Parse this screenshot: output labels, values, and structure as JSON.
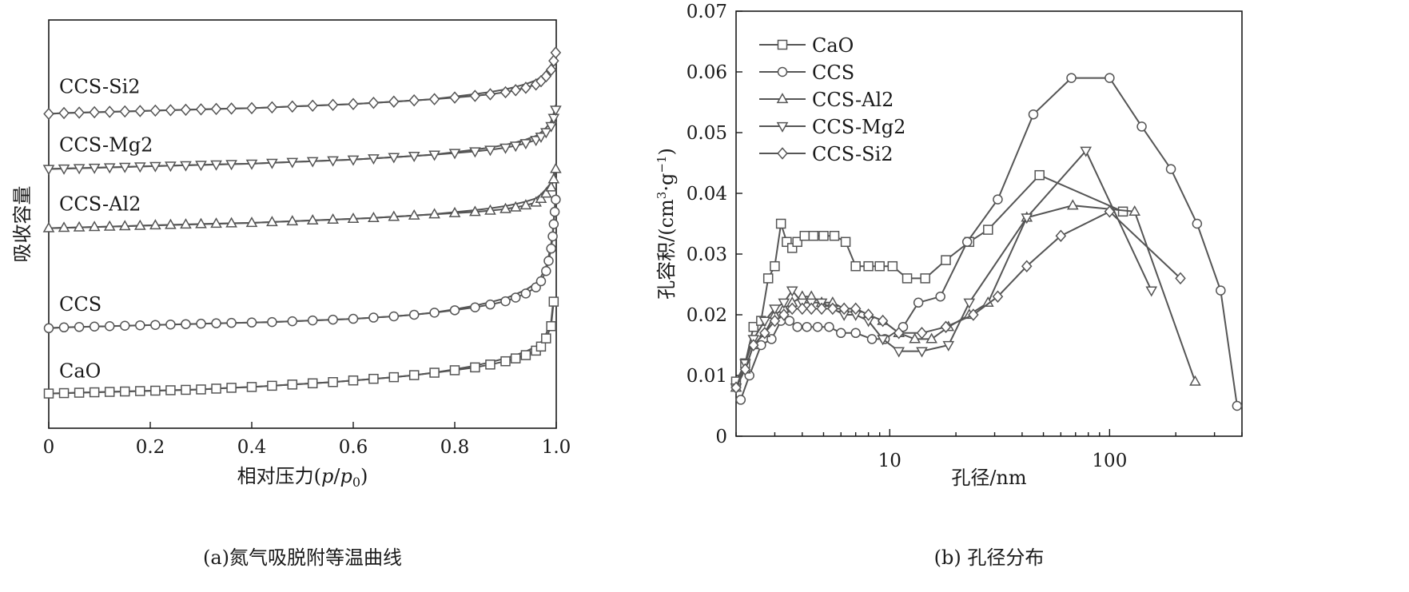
{
  "colors": {
    "line": "#555555",
    "marker_fill": "#ffffff",
    "axis": "#1a1a1a"
  },
  "chart_data": [
    {
      "id": "a",
      "type": "line",
      "caption": "(a)氮气吸脱附等温曲线",
      "xlabel": "相对压力(p/p0)",
      "xlabel_parts": [
        "相对压力(",
        "p",
        "/",
        "p",
        "0",
        ")"
      ],
      "ylabel": "吸收容量",
      "xlim": [
        0,
        1
      ],
      "xticks": [
        0,
        0.2,
        0.4,
        0.6,
        0.8,
        1.0
      ],
      "xtick_labels": [
        "0",
        "0.2",
        "0.4",
        "0.6",
        "0.8",
        "1.0"
      ],
      "y_ticks_labeled": false,
      "ylim": [
        0,
        1
      ],
      "series": [
        {
          "name": "CaO",
          "label": "CaO",
          "marker": "square",
          "x": [
            0,
            0.03,
            0.06,
            0.09,
            0.12,
            0.15,
            0.18,
            0.21,
            0.24,
            0.27,
            0.3,
            0.33,
            0.36,
            0.4,
            0.44,
            0.48,
            0.52,
            0.56,
            0.6,
            0.64,
            0.68,
            0.72,
            0.76,
            0.8,
            0.84,
            0.87,
            0.9,
            0.92,
            0.94,
            0.96,
            0.97,
            0.98,
            0.99,
            0.995
          ],
          "y": [
            0.085,
            0.086,
            0.087,
            0.088,
            0.089,
            0.09,
            0.091,
            0.092,
            0.093,
            0.094,
            0.095,
            0.097,
            0.099,
            0.101,
            0.104,
            0.107,
            0.11,
            0.113,
            0.117,
            0.121,
            0.125,
            0.13,
            0.136,
            0.142,
            0.149,
            0.156,
            0.164,
            0.171,
            0.179,
            0.19,
            0.2,
            0.22,
            0.25,
            0.31
          ]
        },
        {
          "name": "CCS",
          "label": "CCS",
          "marker": "circle",
          "x": [
            0,
            0.03,
            0.06,
            0.09,
            0.12,
            0.15,
            0.18,
            0.21,
            0.24,
            0.27,
            0.3,
            0.33,
            0.36,
            0.4,
            0.44,
            0.48,
            0.52,
            0.56,
            0.6,
            0.64,
            0.68,
            0.72,
            0.76,
            0.8,
            0.84,
            0.87,
            0.9,
            0.92,
            0.94,
            0.96,
            0.97,
            0.98,
            0.985,
            0.99,
            0.993,
            0.995,
            0.997,
            0.999
          ],
          "y": [
            0.245,
            0.247,
            0.248,
            0.249,
            0.25,
            0.251,
            0.252,
            0.253,
            0.254,
            0.255,
            0.256,
            0.257,
            0.258,
            0.259,
            0.26,
            0.262,
            0.264,
            0.266,
            0.268,
            0.271,
            0.274,
            0.278,
            0.283,
            0.289,
            0.296,
            0.303,
            0.311,
            0.32,
            0.33,
            0.345,
            0.36,
            0.385,
            0.41,
            0.44,
            0.47,
            0.5,
            0.53,
            0.56
          ]
        },
        {
          "name": "CCS-Al2",
          "label": "CCS-Al2",
          "marker": "triangle-up",
          "x": [
            0,
            0.03,
            0.06,
            0.09,
            0.12,
            0.15,
            0.18,
            0.21,
            0.24,
            0.27,
            0.3,
            0.33,
            0.36,
            0.4,
            0.44,
            0.48,
            0.52,
            0.56,
            0.6,
            0.64,
            0.68,
            0.72,
            0.76,
            0.8,
            0.84,
            0.87,
            0.9,
            0.92,
            0.94,
            0.96,
            0.97,
            0.98,
            0.99,
            0.995,
            0.999
          ],
          "y": [
            0.49,
            0.491,
            0.492,
            0.493,
            0.494,
            0.495,
            0.496,
            0.497,
            0.498,
            0.499,
            0.5,
            0.501,
            0.502,
            0.503,
            0.505,
            0.507,
            0.509,
            0.511,
            0.513,
            0.515,
            0.518,
            0.521,
            0.524,
            0.527,
            0.53,
            0.533,
            0.537,
            0.541,
            0.546,
            0.553,
            0.562,
            0.575,
            0.59,
            0.61,
            0.635
          ]
        },
        {
          "name": "CCS-Mg2",
          "label": "CCS-Mg2",
          "marker": "triangle-down",
          "x": [
            0,
            0.03,
            0.06,
            0.09,
            0.12,
            0.15,
            0.18,
            0.21,
            0.24,
            0.27,
            0.3,
            0.33,
            0.36,
            0.4,
            0.44,
            0.48,
            0.52,
            0.56,
            0.6,
            0.64,
            0.68,
            0.72,
            0.76,
            0.8,
            0.84,
            0.87,
            0.9,
            0.92,
            0.94,
            0.96,
            0.97,
            0.98,
            0.99,
            0.995,
            0.999
          ],
          "y": [
            0.635,
            0.636,
            0.637,
            0.638,
            0.639,
            0.64,
            0.641,
            0.642,
            0.643,
            0.644,
            0.645,
            0.646,
            0.647,
            0.648,
            0.65,
            0.652,
            0.654,
            0.656,
            0.658,
            0.661,
            0.664,
            0.667,
            0.67,
            0.674,
            0.678,
            0.682,
            0.687,
            0.692,
            0.698,
            0.706,
            0.714,
            0.725,
            0.74,
            0.76,
            0.78
          ]
        },
        {
          "name": "CCS-Si2",
          "label": "CCS-Si2",
          "marker": "diamond",
          "x": [
            0,
            0.03,
            0.06,
            0.09,
            0.12,
            0.15,
            0.18,
            0.21,
            0.24,
            0.27,
            0.3,
            0.33,
            0.36,
            0.4,
            0.44,
            0.48,
            0.52,
            0.56,
            0.6,
            0.64,
            0.68,
            0.72,
            0.76,
            0.8,
            0.84,
            0.87,
            0.9,
            0.92,
            0.94,
            0.96,
            0.97,
            0.98,
            0.99,
            0.995,
            0.999
          ],
          "y": [
            0.77,
            0.772,
            0.773,
            0.774,
            0.775,
            0.776,
            0.777,
            0.778,
            0.779,
            0.78,
            0.781,
            0.782,
            0.783,
            0.784,
            0.786,
            0.788,
            0.79,
            0.792,
            0.794,
            0.797,
            0.8,
            0.803,
            0.806,
            0.81,
            0.814,
            0.818,
            0.823,
            0.828,
            0.834,
            0.842,
            0.85,
            0.862,
            0.878,
            0.9,
            0.92
          ]
        }
      ]
    },
    {
      "id": "b",
      "type": "line",
      "caption": "(b) 孔径分布",
      "xlabel": "孔径/nm",
      "ylabel": "孔容积/(cm³·g⁻¹)",
      "ylabel_parts": [
        "孔容积/(cm",
        "3",
        "·g",
        "−1",
        ")"
      ],
      "xscale": "log",
      "xlim": [
        2,
        400
      ],
      "xticks": [
        10,
        100
      ],
      "xtick_labels": [
        "10",
        "100"
      ],
      "ylim": [
        0,
        0.07
      ],
      "yticks": [
        0,
        0.01,
        0.02,
        0.03,
        0.04,
        0.05,
        0.06,
        0.07
      ],
      "ytick_labels": [
        "0",
        "0.01",
        "0.02",
        "0.03",
        "0.04",
        "0.05",
        "0.06",
        "0.07"
      ],
      "legend": {
        "placement": "top-left",
        "entries": [
          "CaO",
          "CCS",
          "CCS-Al2",
          "CCS-Mg2",
          "CCS-Si2"
        ]
      },
      "series": [
        {
          "name": "CaO",
          "marker": "square",
          "x": [
            2.0,
            2.2,
            2.4,
            2.6,
            2.8,
            3.0,
            3.2,
            3.4,
            3.6,
            3.8,
            4.1,
            4.5,
            5.0,
            5.6,
            6.3,
            7.0,
            8.0,
            9.0,
            10.3,
            12.0,
            14.5,
            18.0,
            23.0,
            28.0,
            48.0,
            115.0
          ],
          "y": [
            0.009,
            0.012,
            0.018,
            0.019,
            0.026,
            0.028,
            0.035,
            0.032,
            0.031,
            0.032,
            0.033,
            0.033,
            0.033,
            0.033,
            0.032,
            0.028,
            0.028,
            0.028,
            0.028,
            0.026,
            0.026,
            0.029,
            0.032,
            0.034,
            0.043,
            0.037
          ]
        },
        {
          "name": "CCS",
          "marker": "circle",
          "x": [
            2.1,
            2.3,
            2.6,
            2.9,
            3.2,
            3.5,
            3.8,
            4.2,
            4.7,
            5.3,
            6.0,
            7.0,
            8.3,
            9.5,
            11.5,
            13.5,
            17.0,
            22.5,
            31.0,
            45.0,
            67.0,
            100.0,
            140.0,
            190.0,
            250.0,
            320.0,
            380.0
          ],
          "y": [
            0.006,
            0.01,
            0.015,
            0.016,
            0.019,
            0.019,
            0.018,
            0.018,
            0.018,
            0.018,
            0.017,
            0.017,
            0.016,
            0.016,
            0.018,
            0.022,
            0.023,
            0.032,
            0.039,
            0.053,
            0.059,
            0.059,
            0.051,
            0.044,
            0.035,
            0.024,
            0.005
          ]
        },
        {
          "name": "CCS-Al2",
          "marker": "triangle-up",
          "x": [
            2.0,
            2.2,
            2.4,
            2.7,
            3.0,
            3.3,
            3.6,
            4.0,
            4.4,
            4.9,
            5.5,
            6.2,
            7.0,
            8.0,
            9.3,
            11.0,
            13.0,
            15.5,
            18.5,
            23.0,
            28.0,
            42.0,
            68.0,
            130.0,
            245.0
          ],
          "y": [
            0.008,
            0.011,
            0.015,
            0.017,
            0.02,
            0.021,
            0.022,
            0.023,
            0.023,
            0.022,
            0.022,
            0.021,
            0.021,
            0.02,
            0.019,
            0.017,
            0.016,
            0.016,
            0.018,
            0.02,
            0.022,
            0.036,
            0.038,
            0.037,
            0.009
          ]
        },
        {
          "name": "CCS-Mg2",
          "marker": "triangle-down",
          "x": [
            2.0,
            2.2,
            2.4,
            2.7,
            3.0,
            3.3,
            3.6,
            4.0,
            4.4,
            4.9,
            5.5,
            6.2,
            7.0,
            8.0,
            9.3,
            11.0,
            14.0,
            18.5,
            23.0,
            42.0,
            78.0,
            155.0
          ],
          "y": [
            0.008,
            0.012,
            0.016,
            0.019,
            0.021,
            0.022,
            0.024,
            0.022,
            0.022,
            0.022,
            0.021,
            0.02,
            0.02,
            0.019,
            0.016,
            0.014,
            0.014,
            0.015,
            0.022,
            0.036,
            0.047,
            0.024
          ]
        },
        {
          "name": "CCS-Si2",
          "marker": "diamond",
          "x": [
            2.0,
            2.2,
            2.4,
            2.7,
            3.0,
            3.3,
            3.6,
            4.0,
            4.4,
            4.9,
            5.5,
            6.2,
            7.0,
            8.0,
            9.3,
            11.0,
            14.0,
            18.0,
            24.0,
            31.0,
            42.0,
            60.0,
            100.0,
            210.0
          ],
          "y": [
            0.008,
            0.011,
            0.015,
            0.017,
            0.019,
            0.02,
            0.021,
            0.021,
            0.021,
            0.021,
            0.021,
            0.021,
            0.021,
            0.02,
            0.019,
            0.017,
            0.017,
            0.018,
            0.02,
            0.023,
            0.028,
            0.033,
            0.037,
            0.026
          ]
        }
      ]
    }
  ]
}
